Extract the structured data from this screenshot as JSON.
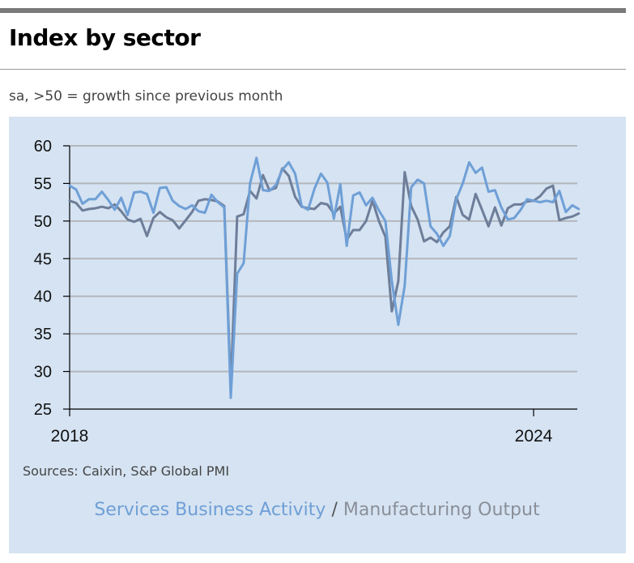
{
  "header": {
    "title": "Index by sector",
    "subtitle": "sa, >50 = growth since previous month"
  },
  "footer": {
    "source": "Sources: Caixin, S&P Global PMI"
  },
  "legend": {
    "separator": "/"
  },
  "colors": {
    "services": "#6f9fd6",
    "manufacturing": "#6e7d98",
    "grid": "#b3b7bc",
    "panel": "#d5e3f2"
  },
  "chart_data": {
    "type": "line",
    "title": "Index by sector",
    "subtitle": "sa, >50 = growth since previous month",
    "x_start": "2018-01",
    "x_frequency": "monthly",
    "x_ticks": [
      "2018",
      "2024"
    ],
    "ylim": [
      25,
      60
    ],
    "y_ticks": [
      25,
      30,
      35,
      40,
      45,
      50,
      55,
      60
    ],
    "grid": true,
    "series": [
      {
        "name": "Services Business Activity",
        "color": "#6f9fd6",
        "values": [
          54.7,
          54.2,
          52.3,
          52.9,
          52.9,
          53.9,
          52.8,
          51.5,
          53.1,
          50.8,
          53.8,
          53.9,
          53.6,
          51.1,
          54.4,
          54.5,
          52.7,
          52.0,
          51.6,
          52.1,
          51.3,
          51.1,
          53.5,
          52.5,
          51.8,
          26.5,
          43.0,
          44.4,
          55.0,
          58.4,
          54.1,
          54.0,
          54.8,
          56.8,
          57.8,
          56.3,
          52.0,
          51.5,
          54.3,
          56.3,
          55.1,
          50.3,
          54.9,
          46.7,
          53.4,
          53.8,
          52.1,
          53.1,
          51.4,
          50.0,
          42.0,
          36.2,
          41.4,
          54.5,
          55.5,
          55.0,
          49.3,
          48.3,
          46.7,
          48.0,
          52.9,
          55.0,
          57.8,
          56.4,
          57.1,
          53.9,
          54.1,
          51.8,
          50.2,
          50.4,
          51.5,
          52.9,
          52.7,
          52.5,
          52.7,
          52.5,
          54.0,
          51.2,
          52.1,
          51.6
        ]
      },
      {
        "name": "Manufacturing Output",
        "color": "#6e7d98",
        "values": [
          52.7,
          52.4,
          51.4,
          51.6,
          51.7,
          51.9,
          51.7,
          52.2,
          51.3,
          50.2,
          49.9,
          50.3,
          48.0,
          50.4,
          51.2,
          50.5,
          50.1,
          49.0,
          50.1,
          51.2,
          52.7,
          52.9,
          52.8,
          52.6,
          52.0,
          27.8,
          50.6,
          50.9,
          54.0,
          53.0,
          56.1,
          54.1,
          54.4,
          57.0,
          56.0,
          53.2,
          51.9,
          51.7,
          51.6,
          52.4,
          52.2,
          51.0,
          51.9,
          47.5,
          48.8,
          48.8,
          50.0,
          52.7,
          50.0,
          47.9,
          38.0,
          42.0,
          56.5,
          52.0,
          50.2,
          47.3,
          47.8,
          47.2,
          48.5,
          49.3,
          53.2,
          50.8,
          50.2,
          53.6,
          51.5,
          49.3,
          51.8,
          49.4,
          51.7,
          52.2,
          52.2,
          52.6,
          52.7,
          53.3,
          54.3,
          54.7,
          50.1,
          50.4,
          50.6,
          51.0
        ]
      }
    ]
  }
}
